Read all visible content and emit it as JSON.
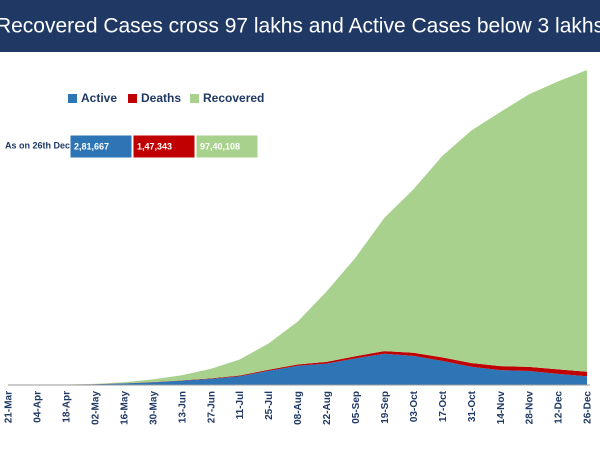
{
  "chart_data": {
    "type": "stacked-area",
    "title": "Recovered Cases cross 97 lakhs and Active Cases below 3 lakhs",
    "summary_label": "As on 26th Dec",
    "categories": [
      "21-Mar",
      "04-Apr",
      "18-Apr",
      "02-May",
      "16-May",
      "30-May",
      "13-Jun",
      "27-Jun",
      "11-Jul",
      "25-Jul",
      "08-Aug",
      "22-Aug",
      "05-Sep",
      "19-Sep",
      "03-Oct",
      "17-Oct",
      "31-Oct",
      "14-Nov",
      "28-Nov",
      "12-Dec",
      "26-Dec"
    ],
    "series": [
      {
        "name": "Active",
        "color": "#2e75b6",
        "values": [
          300,
          2800,
          12000,
          26000,
          53000,
          86000,
          142000,
          197000,
          283000,
          460000,
          620000,
          690000,
          860000,
          1010000,
          940000,
          780000,
          590000,
          480000,
          450000,
          360000,
          281667
        ],
        "value_labels": [
          null,
          null,
          null,
          null,
          null,
          null,
          null,
          null,
          null,
          null,
          null,
          null,
          null,
          null,
          null,
          null,
          null,
          null,
          null,
          null,
          "2,81,667"
        ]
      },
      {
        "name": "Deaths",
        "color": "#c00000",
        "values": [
          7,
          83,
          500,
          1200,
          2900,
          5200,
          9200,
          16000,
          22000,
          31000,
          42000,
          55000,
          70000,
          85000,
          100000,
          113000,
          122000,
          129000,
          136000,
          143000,
          147343
        ],
        "value_labels": [
          null,
          null,
          null,
          null,
          null,
          null,
          null,
          null,
          null,
          null,
          null,
          null,
          null,
          null,
          null,
          null,
          null,
          null,
          null,
          null,
          "1,47,343"
        ]
      },
      {
        "name": "Recovered",
        "color": "#a9d18e",
        "values": [
          40,
          250,
          2500,
          10000,
          32000,
          91000,
          162000,
          309000,
          520000,
          850000,
          1380000,
          2270000,
          3180000,
          4300000,
          5270000,
          6500000,
          7500000,
          8200000,
          8800000,
          9300000,
          9740108
        ],
        "value_labels": [
          null,
          null,
          null,
          null,
          null,
          null,
          null,
          null,
          null,
          null,
          null,
          null,
          null,
          null,
          null,
          null,
          null,
          null,
          null,
          null,
          "97,40,108"
        ]
      }
    ],
    "legend": "top-left",
    "grid": false
  }
}
